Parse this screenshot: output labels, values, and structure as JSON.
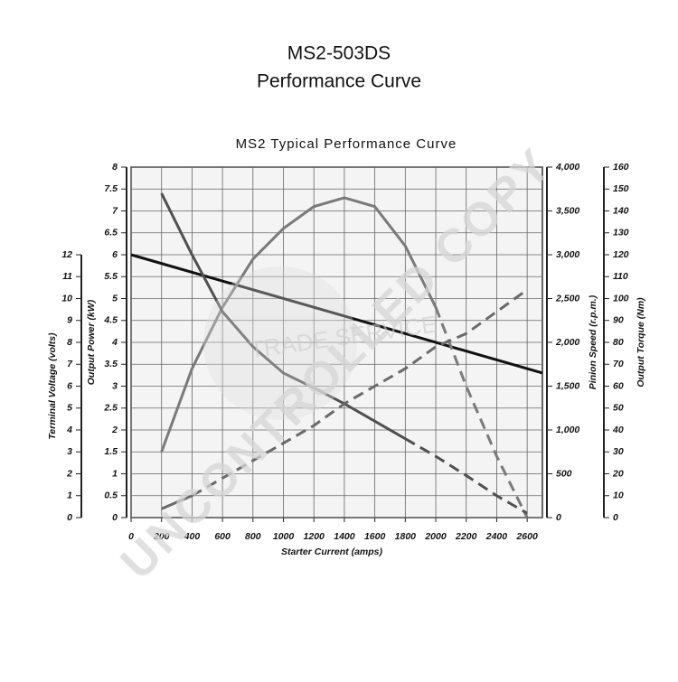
{
  "header": {
    "title": "MS2-503DS",
    "subtitle": "Performance Curve"
  },
  "watermark": {
    "main": "UNCONTROLLED COPY",
    "seal": "TRADE SERVICE"
  },
  "chart_data": {
    "type": "line",
    "title": "MS2 Typical Performance Curve",
    "x_label": "Starter Current  (amps)",
    "xlim": [
      0,
      2700
    ],
    "xticks": [
      0,
      200,
      400,
      600,
      800,
      1000,
      1200,
      1400,
      1600,
      1800,
      2000,
      2200,
      2400,
      2600
    ],
    "x": [
      200,
      400,
      600,
      800,
      1000,
      1200,
      1400,
      1600,
      1800,
      2000,
      2200,
      2400,
      2600
    ],
    "grid": true,
    "y_axes": [
      {
        "label": "Terminal Voltage (volts)",
        "side": "left",
        "ylim": [
          0,
          16
        ],
        "yticks": [
          0,
          1,
          2,
          3,
          4,
          5,
          6,
          7,
          8,
          9,
          10,
          11,
          12
        ]
      },
      {
        "label": "Output Power (kW)",
        "side": "left",
        "ylim": [
          0,
          8
        ],
        "yticks": [
          0,
          0.5,
          1,
          1.5,
          2,
          2.5,
          3,
          3.5,
          4,
          4.5,
          5,
          5.5,
          6,
          6.5,
          7,
          7.5,
          8
        ]
      },
      {
        "label": "Pinion Speed (r.p.m.)",
        "side": "right",
        "ylim": [
          0,
          4000
        ],
        "yticks": [
          0,
          500,
          {
            "value": 1000,
            "label": "1,000"
          },
          {
            "value": 1500,
            "label": "1,500"
          },
          {
            "value": 2000,
            "label": "2,000"
          },
          {
            "value": 2500,
            "label": "2,500"
          },
          {
            "value": 3000,
            "label": "3,000"
          },
          {
            "value": 3500,
            "label": "3,500"
          },
          {
            "value": 4000,
            "label": "4,000"
          }
        ]
      },
      {
        "label": "Output Torque (Nm)",
        "side": "right",
        "ylim": [
          0,
          160
        ],
        "yticks": [
          0,
          10,
          20,
          30,
          40,
          50,
          60,
          70,
          80,
          90,
          100,
          110,
          120,
          130,
          140,
          150,
          160
        ]
      }
    ],
    "series": [
      {
        "axis": 0,
        "color": "#111111",
        "dash_start": null,
        "x": [
          0,
          2700
        ],
        "values": [
          12,
          6.6
        ]
      },
      {
        "axis": 1,
        "color": "#7a7a7a",
        "dash_start": 2000,
        "values": [
          1.5,
          3.4,
          4.8,
          5.9,
          6.6,
          7.1,
          7.3,
          7.1,
          6.2,
          4.8,
          3.0,
          1.4,
          0
        ]
      },
      {
        "axis": 2,
        "color": "#505050",
        "dash_start": 1800,
        "values": [
          3700,
          3000,
          2350,
          1950,
          1650,
          1480,
          1300,
          1100,
          900,
          700,
          480,
          250,
          50
        ]
      },
      {
        "axis": 3,
        "color": "#6a6a6a",
        "dash_start": 400,
        "values": [
          4,
          10,
          18,
          26,
          34,
          42,
          52,
          60,
          68,
          78,
          84,
          94,
          104
        ]
      }
    ]
  }
}
